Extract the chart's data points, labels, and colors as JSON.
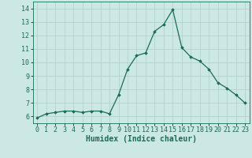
{
  "x": [
    0,
    1,
    2,
    3,
    4,
    5,
    6,
    7,
    8,
    9,
    10,
    11,
    12,
    13,
    14,
    15,
    16,
    17,
    18,
    19,
    20,
    21,
    22,
    23
  ],
  "y": [
    5.9,
    6.2,
    6.3,
    6.4,
    6.4,
    6.3,
    6.4,
    6.4,
    6.2,
    7.6,
    9.5,
    10.5,
    10.7,
    12.3,
    12.8,
    13.9,
    11.1,
    10.4,
    10.1,
    9.5,
    8.5,
    8.1,
    7.6,
    7.0
  ],
  "line_color": "#1a6b5a",
  "marker": "D",
  "markersize": 1.8,
  "linewidth": 0.9,
  "bg_color": "#cce8e4",
  "grid_color": "#b0cfc9",
  "xlabel": "Humidex (Indice chaleur)",
  "xlabel_fontsize": 7,
  "tick_fontsize": 6,
  "xlim": [
    -0.5,
    23.5
  ],
  "ylim": [
    5.5,
    14.5
  ],
  "yticks": [
    6,
    7,
    8,
    9,
    10,
    11,
    12,
    13,
    14
  ],
  "xticks": [
    0,
    1,
    2,
    3,
    4,
    5,
    6,
    7,
    8,
    9,
    10,
    11,
    12,
    13,
    14,
    15,
    16,
    17,
    18,
    19,
    20,
    21,
    22,
    23
  ]
}
